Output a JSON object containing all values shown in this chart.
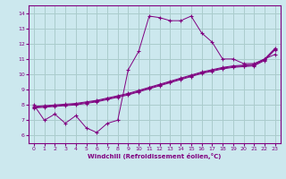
{
  "xlabel": "Windchill (Refroidissement éolien,°C)",
  "bg_color": "#cce8ee",
  "grid_color": "#aacccc",
  "line_color": "#800080",
  "xlim": [
    -0.5,
    23.5
  ],
  "ylim": [
    5.5,
    14.5
  ],
  "xticks": [
    0,
    1,
    2,
    3,
    4,
    5,
    6,
    7,
    8,
    9,
    10,
    11,
    12,
    13,
    14,
    15,
    16,
    17,
    18,
    19,
    20,
    21,
    22,
    23
  ],
  "yticks": [
    6,
    7,
    8,
    9,
    10,
    11,
    12,
    13,
    14
  ],
  "series1_x": [
    0,
    1,
    2,
    3,
    4,
    5,
    6,
    7,
    8,
    9,
    10,
    11,
    12,
    13,
    14,
    15,
    16,
    17,
    18,
    19,
    20,
    21,
    22,
    23
  ],
  "series1_y": [
    8.0,
    7.0,
    7.4,
    6.8,
    7.3,
    6.5,
    6.2,
    6.8,
    7.0,
    10.3,
    11.5,
    13.8,
    13.7,
    13.5,
    13.5,
    13.8,
    12.7,
    12.1,
    11.0,
    11.0,
    10.7,
    10.7,
    11.0,
    11.3
  ],
  "series2_x": [
    0,
    1,
    2,
    3,
    4,
    5,
    6,
    7,
    8,
    9,
    10,
    11,
    12,
    13,
    14,
    15,
    16,
    17,
    18,
    19,
    20,
    21,
    22,
    23
  ],
  "series2_y": [
    7.8,
    7.85,
    7.9,
    7.95,
    8.0,
    8.1,
    8.2,
    8.35,
    8.5,
    8.65,
    8.85,
    9.05,
    9.25,
    9.45,
    9.65,
    9.85,
    10.05,
    10.2,
    10.35,
    10.45,
    10.5,
    10.55,
    10.9,
    11.6
  ],
  "series3_x": [
    0,
    1,
    2,
    3,
    4,
    5,
    6,
    7,
    8,
    9,
    10,
    11,
    12,
    13,
    14,
    15,
    16,
    17,
    18,
    19,
    20,
    21,
    22,
    23
  ],
  "series3_y": [
    7.9,
    7.95,
    8.0,
    8.05,
    8.1,
    8.2,
    8.3,
    8.45,
    8.6,
    8.75,
    8.95,
    9.15,
    9.35,
    9.55,
    9.75,
    9.95,
    10.15,
    10.3,
    10.45,
    10.55,
    10.6,
    10.65,
    11.0,
    11.7
  ],
  "series4_x": [
    0,
    1,
    2,
    3,
    4,
    5,
    6,
    7,
    8,
    9,
    10,
    11,
    12,
    13,
    14,
    15,
    16,
    17,
    18,
    19,
    20,
    21,
    22,
    23
  ],
  "series4_y": [
    7.85,
    7.9,
    7.95,
    8.0,
    8.05,
    8.15,
    8.25,
    8.4,
    8.55,
    8.7,
    8.9,
    9.1,
    9.3,
    9.5,
    9.7,
    9.9,
    10.1,
    10.25,
    10.4,
    10.5,
    10.55,
    10.6,
    10.95,
    11.65
  ]
}
